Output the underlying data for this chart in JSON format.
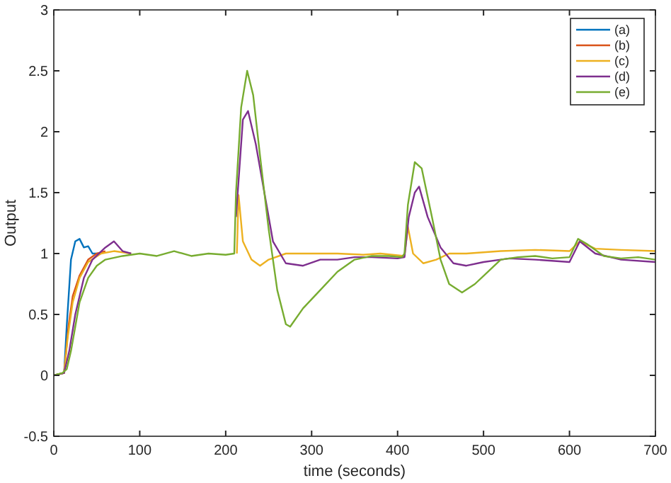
{
  "chart_data": {
    "type": "line",
    "xlabel": "time (seconds)",
    "ylabel": "Output",
    "xlim": [
      0,
      700
    ],
    "ylim": [
      -0.5,
      3
    ],
    "xticks": [
      0,
      100,
      200,
      300,
      400,
      500,
      600,
      700
    ],
    "yticks": [
      -0.5,
      0,
      0.5,
      1,
      1.5,
      2,
      2.5,
      3
    ],
    "grid": false,
    "legend": "top right",
    "series": [
      {
        "name": "(a)",
        "color": "#0072bd",
        "x": [
          0,
          12,
          15,
          20,
          25,
          30,
          35,
          40,
          45,
          55
        ],
        "values": [
          0,
          0.02,
          0.4,
          0.95,
          1.1,
          1.12,
          1.05,
          1.06,
          1,
          1
        ]
      },
      {
        "name": "(b)",
        "color": "#d95319",
        "x": [
          0,
          12,
          17,
          22,
          30,
          40,
          50,
          60
        ],
        "values": [
          0,
          0.02,
          0.4,
          0.65,
          0.82,
          0.95,
          1,
          1.02
        ]
      },
      {
        "name": "(c)",
        "color": "#edb120",
        "x": [
          0,
          12,
          16,
          22,
          30,
          40,
          55,
          70,
          90,
          212,
          213,
          215,
          220,
          230,
          240,
          250,
          270,
          300,
          330,
          360,
          380,
          408,
          412,
          418,
          430,
          445,
          460,
          480,
          520,
          560,
          600,
          612,
          630,
          660,
          700
        ],
        "values": [
          0,
          0.02,
          0.3,
          0.6,
          0.8,
          0.93,
          1,
          1.02,
          1,
          null,
          1,
          1.48,
          1.1,
          0.95,
          0.9,
          0.95,
          1,
          1,
          1,
          0.99,
          1,
          0.98,
          1.22,
          1,
          0.92,
          0.95,
          1,
          1,
          1.02,
          1.03,
          1.02,
          1.1,
          1.04,
          1.03,
          1.02
        ]
      },
      {
        "name": "(d)",
        "color": "#7e2f8e",
        "x": [
          0,
          12,
          18,
          25,
          35,
          45,
          60,
          70,
          80,
          90,
          211,
          212,
          220,
          226,
          235,
          245,
          255,
          270,
          290,
          310,
          330,
          350,
          370,
          400,
          408,
          413,
          420,
          425,
          435,
          450,
          465,
          480,
          500,
          520,
          530,
          560,
          600,
          612,
          630,
          660,
          700
        ],
        "values": [
          0,
          0.02,
          0.2,
          0.5,
          0.8,
          0.95,
          1.05,
          1.1,
          1.02,
          1,
          null,
          1.3,
          2.1,
          2.17,
          1.9,
          1.5,
          1.1,
          0.92,
          0.9,
          0.95,
          0.95,
          0.97,
          0.97,
          0.96,
          0.97,
          1.3,
          1.5,
          1.55,
          1.3,
          1.05,
          0.92,
          0.9,
          0.93,
          0.95,
          0.96,
          0.95,
          0.93,
          1.1,
          1,
          0.95,
          0.93
        ]
      },
      {
        "name": "(e)",
        "color": "#77ac30",
        "x": [
          0,
          10,
          15,
          20,
          25,
          30,
          40,
          50,
          60,
          80,
          100,
          120,
          140,
          160,
          180,
          200,
          210,
          212,
          218,
          225,
          232,
          240,
          250,
          260,
          270,
          275,
          290,
          310,
          330,
          350,
          370,
          390,
          405,
          408,
          412,
          420,
          428,
          440,
          450,
          460,
          475,
          490,
          505,
          520,
          540,
          560,
          580,
          600,
          610,
          620,
          640,
          660,
          680,
          700
        ],
        "values": [
          0,
          0.02,
          0.05,
          0.2,
          0.4,
          0.6,
          0.8,
          0.9,
          0.95,
          0.98,
          1,
          0.98,
          1.02,
          0.98,
          1,
          0.99,
          1,
          1.5,
          2.2,
          2.5,
          2.3,
          1.8,
          1.2,
          0.7,
          0.42,
          0.4,
          0.55,
          0.7,
          0.85,
          0.95,
          0.98,
          0.98,
          0.97,
          1,
          1.4,
          1.75,
          1.7,
          1.3,
          0.95,
          0.75,
          0.68,
          0.75,
          0.85,
          0.95,
          0.97,
          0.98,
          0.96,
          0.97,
          1.12,
          1.08,
          0.98,
          0.96,
          0.97,
          0.95
        ]
      }
    ]
  }
}
